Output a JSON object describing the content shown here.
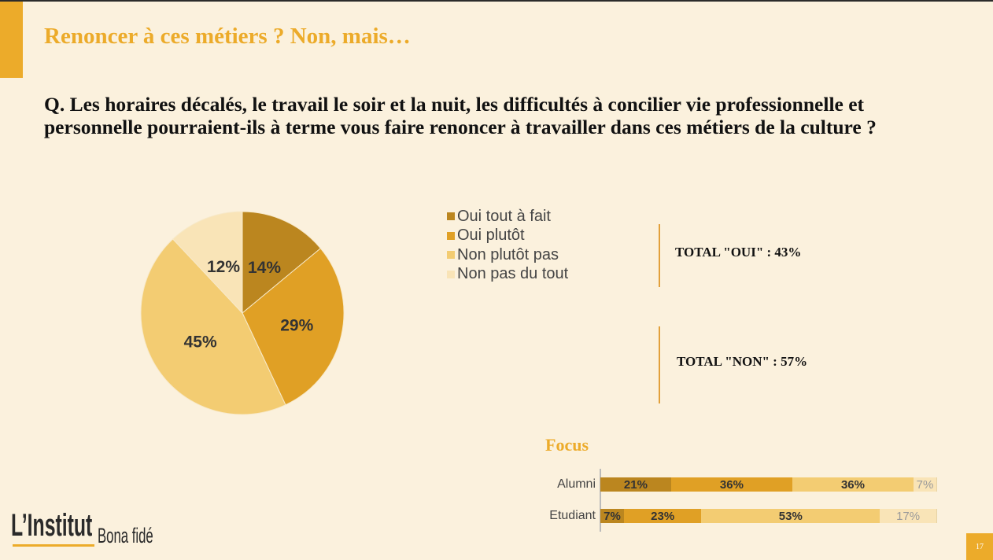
{
  "header": {
    "title": "Renoncer à ces métiers ? Non, mais…",
    "question": "Q. Les horaires décalés, le travail le soir et la nuit, les difficultés à concilier vie professionnelle et personnelle pourraient-ils à terme vous faire renoncer à travailler dans ces métiers de la culture ?"
  },
  "totals": {
    "oui": "TOTAL \"OUI\" : 43%",
    "non": "TOTAL \"NON\" : 57%"
  },
  "focus": {
    "title": "Focus"
  },
  "logo": {
    "main": "L’Institut",
    "sub": "Bona fidé"
  },
  "page_number": "17",
  "colors": {
    "accent": "#ecab2a",
    "background": "#fbf1dd",
    "oui_tout_a_fait": "#bb861f",
    "oui_plutot": "#e0a025",
    "non_plutot_pas": "#f3cc72",
    "non_pas_du_tout": "#f9e4b7"
  },
  "chart_data": [
    {
      "type": "pie",
      "categories": [
        "Oui tout à fait",
        "Oui plutôt",
        "Non plutôt pas",
        "Non pas du tout"
      ],
      "values": [
        14,
        29,
        45,
        12
      ],
      "labels": [
        "14%",
        "29%",
        "45%",
        "12%"
      ],
      "legend_position": "right"
    },
    {
      "type": "bar",
      "orientation": "horizontal-stacked",
      "categories": [
        "Alumni",
        "Etudiant"
      ],
      "series": [
        {
          "name": "Oui tout à fait",
          "values": [
            21,
            7
          ],
          "labels": [
            "21%",
            "7%"
          ]
        },
        {
          "name": "Oui plutôt",
          "values": [
            36,
            23
          ],
          "labels": [
            "36%",
            "23%"
          ]
        },
        {
          "name": "Non plutôt pas",
          "values": [
            36,
            53
          ],
          "labels": [
            "36%",
            "53%"
          ]
        },
        {
          "name": "Non pas du tout",
          "values": [
            7,
            17
          ],
          "labels": [
            "7%",
            "17%"
          ]
        }
      ]
    }
  ]
}
